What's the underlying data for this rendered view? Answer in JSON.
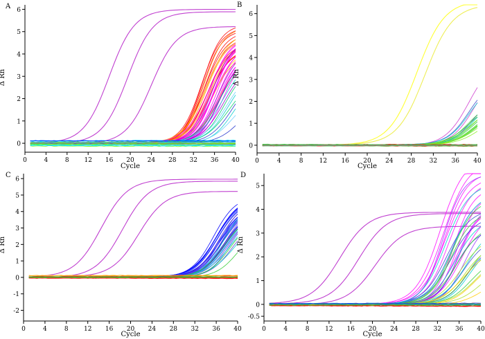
{
  "chart_data": [
    {
      "panel": "A",
      "type": "line",
      "xlabel": "Cycle",
      "ylabel": "Δ Rn",
      "xlim": [
        0,
        40
      ],
      "ylim": [
        -0.4,
        6.2
      ],
      "xticks": [
        0,
        4,
        8,
        12,
        16,
        20,
        24,
        28,
        32,
        36,
        40
      ],
      "yticks": [
        0,
        1,
        2,
        3,
        4,
        5,
        6
      ],
      "series": [
        {
          "color": "#c040d0",
          "group": "standard",
          "count": 1,
          "plateau": [
            6.0,
            6.0
          ],
          "ct": [
            16,
            16
          ],
          "slope": [
            2.4,
            2.4
          ]
        },
        {
          "color": "#c040d0",
          "group": "standard",
          "count": 1,
          "plateau": [
            5.9,
            5.9
          ],
          "ct": [
            19.5,
            19.5
          ],
          "slope": [
            2.4,
            2.4
          ]
        },
        {
          "color": "#c040d0",
          "group": "standard",
          "count": 1,
          "plateau": [
            5.25,
            5.25
          ],
          "ct": [
            24,
            24
          ],
          "slope": [
            2.4,
            2.4
          ]
        },
        {
          "color": "#ff0000",
          "group": "samples",
          "count": 10,
          "plateau": [
            4.2,
            5.4
          ],
          "ct": [
            33.5,
            35
          ],
          "slope": [
            1.8,
            2.2
          ]
        },
        {
          "color": "#ff8800",
          "group": "samples",
          "count": 4,
          "plateau": [
            4.0,
            5.2
          ],
          "ct": [
            34,
            35.5
          ],
          "slope": [
            1.8,
            2.2
          ]
        },
        {
          "color": "#ffdd00",
          "group": "samples",
          "count": 4,
          "plateau": [
            3.8,
            5.0
          ],
          "ct": [
            34.5,
            36.5
          ],
          "slope": [
            1.8,
            2.2
          ]
        },
        {
          "color": "#ff00ff",
          "group": "samples",
          "count": 14,
          "plateau": [
            3.8,
            4.9
          ],
          "ct": [
            35,
            37.5
          ],
          "slope": [
            1.8,
            2.3
          ]
        },
        {
          "color": "#9900cc",
          "group": "samples",
          "count": 4,
          "plateau": [
            3.6,
            4.6
          ],
          "ct": [
            35.5,
            38
          ],
          "slope": [
            1.9,
            2.3
          ]
        },
        {
          "color": "#00cc66",
          "group": "samples",
          "count": 3,
          "plateau": [
            3.0,
            4.0
          ],
          "ct": [
            37,
            39
          ],
          "slope": [
            2.0,
            2.4
          ]
        },
        {
          "color": "#00cccc",
          "group": "samples",
          "count": 3,
          "plateau": [
            2.8,
            3.8
          ],
          "ct": [
            37.5,
            39.5
          ],
          "slope": [
            2.0,
            2.4
          ]
        },
        {
          "color": "#66ccff",
          "group": "samples",
          "count": 2,
          "plateau": [
            2.5,
            3.5
          ],
          "ct": [
            38.5,
            40
          ],
          "slope": [
            2.1,
            2.4
          ]
        },
        {
          "color": "#2233cc",
          "group": "samples",
          "count": 2,
          "plateau": [
            2.0,
            3.2
          ],
          "ct": [
            39.5,
            41
          ],
          "slope": [
            2.2,
            2.5
          ]
        },
        {
          "color": "#66ff00",
          "group": "baseline",
          "count": 8,
          "level": [
            -0.15,
            0.05
          ]
        },
        {
          "color": "#00ddff",
          "group": "baseline",
          "count": 5,
          "level": [
            -0.1,
            0.12
          ]
        },
        {
          "color": "#0055ff",
          "group": "baseline",
          "count": 3,
          "level": [
            0.05,
            0.15
          ]
        },
        {
          "color": "#888888",
          "group": "baseline",
          "count": 2,
          "level": [
            -0.05,
            0.05
          ]
        }
      ]
    },
    {
      "panel": "B",
      "type": "line",
      "xlabel": "Cycle",
      "ylabel": "Δ Rn",
      "xlim": [
        0,
        40
      ],
      "ylim": [
        -0.35,
        6.4
      ],
      "xticks": [
        0,
        4,
        8,
        12,
        16,
        20,
        24,
        28,
        32,
        36,
        40
      ],
      "yticks": [
        0,
        1,
        2,
        3,
        4,
        5,
        6
      ],
      "series": [
        {
          "color": "#ffff33",
          "group": "standard",
          "count": 1,
          "plateau": [
            6.6,
            6.6
          ],
          "ct": [
            29,
            29
          ],
          "slope": [
            2.5,
            2.5
          ]
        },
        {
          "color": "#eeee55",
          "group": "standard",
          "count": 1,
          "plateau": [
            6.4,
            6.4
          ],
          "ct": [
            30.5,
            30.5
          ],
          "slope": [
            2.5,
            2.5
          ]
        },
        {
          "color": "#cc33cc",
          "group": "samples",
          "count": 2,
          "plateau": [
            3.5,
            4.0
          ],
          "ct": [
            38.5,
            39.5
          ],
          "slope": [
            2.0,
            2.2
          ]
        },
        {
          "color": "#3344cc",
          "group": "samples",
          "count": 2,
          "plateau": [
            2.5,
            3.0
          ],
          "ct": [
            38.5,
            39.5
          ],
          "slope": [
            2.0,
            2.2
          ]
        },
        {
          "color": "#00cccc",
          "group": "samples",
          "count": 2,
          "plateau": [
            2.3,
            2.8
          ],
          "ct": [
            38.5,
            39.5
          ],
          "slope": [
            2.0,
            2.2
          ]
        },
        {
          "color": "#33cc33",
          "group": "samples",
          "count": 7,
          "plateau": [
            1.6,
            2.1
          ],
          "ct": [
            38.5,
            40
          ],
          "slope": [
            2.0,
            2.3
          ]
        },
        {
          "color": "#88ee22",
          "group": "samples",
          "count": 4,
          "plateau": [
            1.4,
            1.9
          ],
          "ct": [
            39,
            40.5
          ],
          "slope": [
            2.0,
            2.3
          ]
        },
        {
          "color": "#ff0000",
          "group": "baseline",
          "count": 4,
          "level": [
            -0.04,
            0.04
          ]
        },
        {
          "color": "#33cc33",
          "group": "baseline",
          "count": 5,
          "level": [
            -0.05,
            0.05
          ]
        },
        {
          "color": "#888888",
          "group": "baseline",
          "count": 2,
          "level": [
            -0.03,
            0.03
          ]
        }
      ]
    },
    {
      "panel": "C",
      "type": "line",
      "xlabel": "Cycle",
      "ylabel": "Δ Rn",
      "xlim": [
        0,
        40
      ],
      "ylim": [
        -2.65,
        6.3
      ],
      "xticks": [
        0,
        4,
        8,
        12,
        16,
        20,
        24,
        28,
        32,
        36,
        40
      ],
      "yticks": [
        -2,
        -1,
        0,
        1,
        2,
        3,
        4,
        5,
        6
      ],
      "series": [
        {
          "color": "#c040d0",
          "group": "standard",
          "count": 1,
          "plateau": [
            5.95,
            5.95
          ],
          "ct": [
            14.5,
            14.5
          ],
          "slope": [
            2.5,
            2.5
          ]
        },
        {
          "color": "#c040d0",
          "group": "standard",
          "count": 1,
          "plateau": [
            5.85,
            5.85
          ],
          "ct": [
            18.5,
            18.5
          ],
          "slope": [
            2.5,
            2.5
          ]
        },
        {
          "color": "#c040d0",
          "group": "standard",
          "count": 1,
          "plateau": [
            5.2,
            5.2
          ],
          "ct": [
            21.5,
            21.5
          ],
          "slope": [
            2.5,
            2.5
          ]
        },
        {
          "color": "#0000ff",
          "group": "samples",
          "count": 14,
          "plateau": [
            4.0,
            5.0
          ],
          "ct": [
            35.5,
            38
          ],
          "slope": [
            1.9,
            2.3
          ]
        },
        {
          "color": "#3355ff",
          "group": "samples",
          "count": 6,
          "plateau": [
            3.8,
            4.8
          ],
          "ct": [
            36,
            38.5
          ],
          "slope": [
            1.9,
            2.3
          ]
        },
        {
          "color": "#6633cc",
          "group": "samples",
          "count": 6,
          "plateau": [
            3.6,
            4.6
          ],
          "ct": [
            36.5,
            39
          ],
          "slope": [
            1.9,
            2.3
          ]
        },
        {
          "color": "#00cccc",
          "group": "samples",
          "count": 4,
          "plateau": [
            3.5,
            4.5
          ],
          "ct": [
            37,
            39.5
          ],
          "slope": [
            2.0,
            2.4
          ]
        },
        {
          "color": "#33cc33",
          "group": "samples",
          "count": 3,
          "plateau": [
            3.0,
            4.0
          ],
          "ct": [
            37.5,
            40
          ],
          "slope": [
            2.0,
            2.4
          ]
        },
        {
          "color": "#ff0000",
          "group": "baseline",
          "count": 6,
          "level": [
            -0.05,
            0.08
          ]
        },
        {
          "color": "#ffaa00",
          "group": "baseline",
          "count": 3,
          "level": [
            -0.03,
            0.12
          ]
        },
        {
          "color": "#33cc33",
          "group": "baseline",
          "count": 3,
          "level": [
            -0.03,
            0.05
          ]
        }
      ]
    },
    {
      "panel": "D",
      "type": "line",
      "xlabel": "Cycle",
      "ylabel": "Δ Rn",
      "xlim": [
        0,
        40
      ],
      "ylim": [
        -0.7,
        5.5
      ],
      "xticks": [
        0,
        4,
        8,
        12,
        16,
        20,
        24,
        28,
        32,
        36,
        40
      ],
      "yticks": [
        -0.5,
        0,
        1,
        2,
        3,
        4,
        5
      ],
      "yticklabels": [
        "-0.5",
        "0",
        "1",
        "2",
        "3",
        "4",
        "5"
      ],
      "series": [
        {
          "color": "#c040d0",
          "group": "standard",
          "count": 1,
          "plateau": [
            3.85,
            3.85
          ],
          "ct": [
            14,
            14
          ],
          "slope": [
            2.6,
            2.6
          ]
        },
        {
          "color": "#c040d0",
          "group": "standard",
          "count": 1,
          "plateau": [
            3.8,
            3.8
          ],
          "ct": [
            17.5,
            17.5
          ],
          "slope": [
            2.6,
            2.6
          ]
        },
        {
          "color": "#c040d0",
          "group": "standard",
          "count": 1,
          "plateau": [
            3.3,
            3.3
          ],
          "ct": [
            20.5,
            20.5
          ],
          "slope": [
            2.6,
            2.6
          ]
        },
        {
          "color": "#ff00ff",
          "group": "samples",
          "count": 10,
          "plateau": [
            3.8,
            6.2
          ],
          "ct": [
            32.5,
            36.5
          ],
          "slope": [
            1.8,
            2.3
          ]
        },
        {
          "color": "#9933ff",
          "group": "samples",
          "count": 4,
          "plateau": [
            3.5,
            5.5
          ],
          "ct": [
            33,
            37
          ],
          "slope": [
            1.8,
            2.3
          ]
        },
        {
          "color": "#3344cc",
          "group": "samples",
          "count": 5,
          "plateau": [
            2.4,
            4.0
          ],
          "ct": [
            33.5,
            37.5
          ],
          "slope": [
            1.9,
            2.3
          ]
        },
        {
          "color": "#00cccc",
          "group": "samples",
          "count": 5,
          "plateau": [
            2.5,
            5.2
          ],
          "ct": [
            33.5,
            38
          ],
          "slope": [
            1.9,
            2.3
          ]
        },
        {
          "color": "#33cc33",
          "group": "samples",
          "count": 5,
          "plateau": [
            2.0,
            4.6
          ],
          "ct": [
            34,
            38.5
          ],
          "slope": [
            1.9,
            2.4
          ]
        },
        {
          "color": "#aadd22",
          "group": "samples",
          "count": 4,
          "plateau": [
            1.5,
            3.0
          ],
          "ct": [
            36,
            40
          ],
          "slope": [
            2.0,
            2.4
          ]
        },
        {
          "color": "#ffcc00",
          "group": "samples",
          "count": 3,
          "plateau": [
            1.2,
            2.4
          ],
          "ct": [
            37,
            41
          ],
          "slope": [
            2.0,
            2.4
          ]
        },
        {
          "color": "#ff0000",
          "group": "baseline",
          "count": 6,
          "level": [
            -0.06,
            0.03
          ]
        },
        {
          "color": "#33cc33",
          "group": "baseline",
          "count": 4,
          "level": [
            -0.04,
            0.06
          ]
        },
        {
          "color": "#0055ff",
          "group": "baseline",
          "count": 2,
          "level": [
            0.0,
            0.08
          ]
        }
      ]
    }
  ]
}
